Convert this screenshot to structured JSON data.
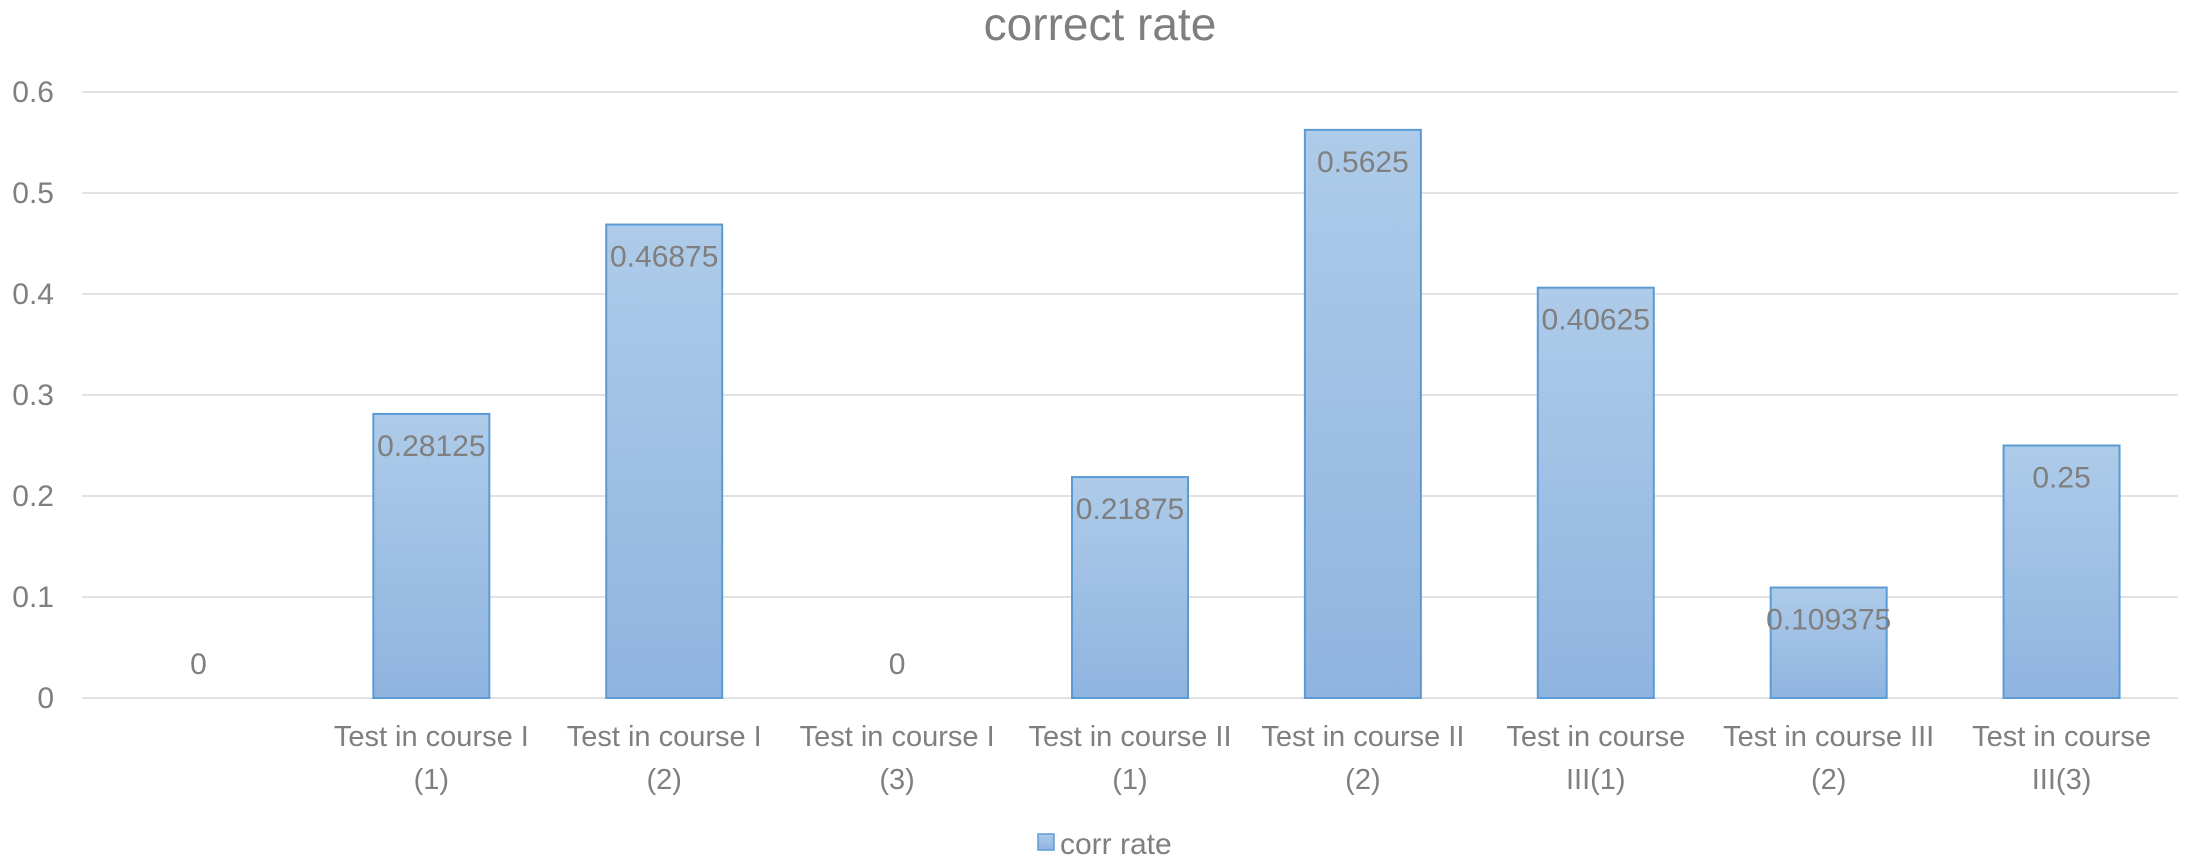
{
  "chart_data": {
    "type": "bar",
    "title": "correct rate",
    "xlabel": "",
    "ylabel": "",
    "ylim": [
      0,
      0.6
    ],
    "yticks": [
      0,
      0.1,
      0.2,
      0.3,
      0.4,
      0.5,
      0.6
    ],
    "ytick_labels": [
      "0",
      "0.1",
      "0.2",
      "0.3",
      "0.4",
      "0.5",
      "0.6"
    ],
    "grid": true,
    "legend_position": "bottom",
    "categories": [
      "",
      "Test in  course I (1)",
      "Test in  course I (2)",
      "Test in  course I (3)",
      "Test in  course II (1)",
      "Test in  course II (2)",
      "Test in  course III(1)",
      "Test in  course III (2)",
      "Test in  course III(3)"
    ],
    "category_lines": [
      [],
      [
        "Test in  course I",
        "(1)"
      ],
      [
        "Test in  course I",
        "(2)"
      ],
      [
        "Test in  course I",
        "(3)"
      ],
      [
        "Test in  course II",
        "(1)"
      ],
      [
        "Test in  course II",
        "(2)"
      ],
      [
        "Test in  course",
        "III(1)"
      ],
      [
        "Test in  course III",
        "(2)"
      ],
      [
        "Test in  course",
        "III(3)"
      ]
    ],
    "series": [
      {
        "name": "corr rate",
        "values": [
          0,
          0.28125,
          0.46875,
          0,
          0.21875,
          0.5625,
          0.40625,
          0.109375,
          0.25
        ],
        "labels": [
          "0",
          "0.28125",
          "0.46875",
          "0",
          "0.21875",
          "0.5625",
          "0.40625",
          "0.109375",
          "0.25"
        ]
      }
    ],
    "colors": {
      "bar_top": "#aecbe9",
      "bar_bottom": "#8fb4e0",
      "bar_stroke": "#5b9bd5",
      "text": "#7f7f7f",
      "grid": "#d9d9d9"
    }
  }
}
